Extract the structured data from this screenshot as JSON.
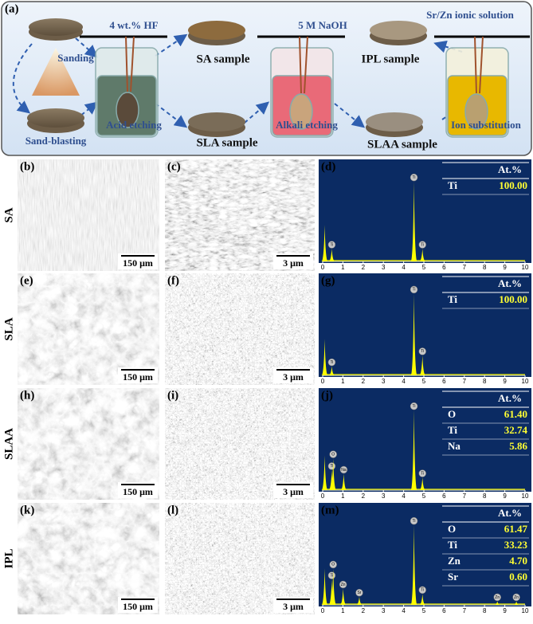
{
  "panel_a": {
    "label": "(a)",
    "sanding": "Sanding",
    "sand_blasting": "Sand-blasting",
    "hf": "4 wt.% HF",
    "acid_etching": "Acid etching",
    "sa_sample": "SA sample",
    "sla_sample": "SLA sample",
    "naoh": "5 M NaOH",
    "alkali_etching": "Alkali etching",
    "slaa_sample": "SLAA sample",
    "ionic_solution": "Sr/Zn ionic solution",
    "ipl_sample": "IPL sample",
    "ion_substitution": "Ion substitution"
  },
  "spectrum_xticks": [
    0,
    1,
    2,
    3,
    4,
    5,
    6,
    7,
    8,
    9,
    10
  ],
  "spectrum_xlim": [
    0,
    10
  ],
  "spectrum_ylim": [
    0,
    100
  ],
  "rows": [
    {
      "name": "SA",
      "panels": [
        "(b)",
        "(c)",
        "(d)"
      ],
      "scales": [
        "150 μm",
        "3 μm"
      ],
      "table_header": "At.%",
      "table": [
        [
          "Ti",
          "100.00"
        ]
      ],
      "peaks": [
        {
          "x": 0.1,
          "height": 40,
          "label": null
        },
        {
          "x": 0.45,
          "height": 14,
          "label": "Ti"
        },
        {
          "x": 4.51,
          "height": 88,
          "label": "Ti"
        },
        {
          "x": 4.93,
          "height": 14,
          "label": "Ti"
        }
      ]
    },
    {
      "name": "SLA",
      "panels": [
        "(e)",
        "(f)",
        "(g)"
      ],
      "scales": [
        "150 μm",
        "3 μm"
      ],
      "table_header": "At.%",
      "table": [
        [
          "Ti",
          "100.00"
        ]
      ],
      "peaks": [
        {
          "x": 0.1,
          "height": 40,
          "label": null
        },
        {
          "x": 0.45,
          "height": 10,
          "label": "Ti"
        },
        {
          "x": 4.51,
          "height": 90,
          "label": "Ti"
        },
        {
          "x": 4.93,
          "height": 22,
          "label": "Ti"
        }
      ]
    },
    {
      "name": "SLAA",
      "panels": [
        "(h)",
        "(i)",
        "(j)"
      ],
      "scales": [
        "150 μm",
        "3 μm"
      ],
      "table_header": "At.%",
      "table": [
        [
          "O",
          "61.40"
        ],
        [
          "Ti",
          "32.74"
        ],
        [
          "Na",
          "5.86"
        ]
      ],
      "peaks": [
        {
          "x": 0.1,
          "height": 38,
          "label": null
        },
        {
          "x": 0.45,
          "height": 22,
          "label": "Ti"
        },
        {
          "x": 0.52,
          "height": 35,
          "label": "O"
        },
        {
          "x": 1.04,
          "height": 18,
          "label": "Na"
        },
        {
          "x": 4.51,
          "height": 88,
          "label": "Ti"
        },
        {
          "x": 4.93,
          "height": 14,
          "label": "Ti"
        }
      ]
    },
    {
      "name": "IPL",
      "panels": [
        "(k)",
        "(l)",
        "(m)"
      ],
      "scales": [
        "150 μm",
        "3 μm"
      ],
      "table_header": "At.%",
      "table": [
        [
          "O",
          "61.47"
        ],
        [
          "Ti",
          "33.23"
        ],
        [
          "Zn",
          "4.70"
        ],
        [
          "Sr",
          "0.60"
        ]
      ],
      "peaks": [
        {
          "x": 0.1,
          "height": 40,
          "label": null
        },
        {
          "x": 0.45,
          "height": 28,
          "label": "Ti"
        },
        {
          "x": 0.52,
          "height": 40,
          "label": "O"
        },
        {
          "x": 1.01,
          "height": 18,
          "label": "Zn"
        },
        {
          "x": 1.81,
          "height": 9,
          "label": "Sr"
        },
        {
          "x": 4.51,
          "height": 88,
          "label": "Ti"
        },
        {
          "x": 4.93,
          "height": 12,
          "label": "Ti"
        },
        {
          "x": 8.63,
          "height": 4,
          "label": "Zn"
        },
        {
          "x": 9.57,
          "height": 4,
          "label": "Zn"
        }
      ]
    }
  ]
}
